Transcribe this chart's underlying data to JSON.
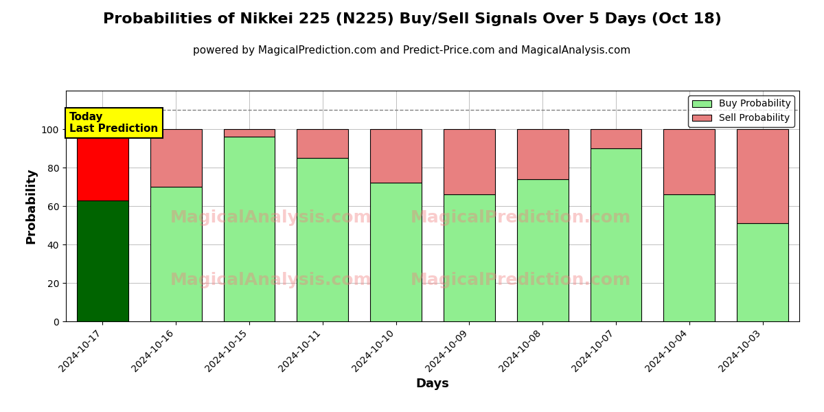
{
  "title": "Probabilities of Nikkei 225 (N225) Buy/Sell Signals Over 5 Days (Oct 18)",
  "subtitle": "powered by MagicalPrediction.com and Predict-Price.com and MagicalAnalysis.com",
  "xlabel": "Days",
  "ylabel": "Probability",
  "dates": [
    "2024-10-17",
    "2024-10-16",
    "2024-10-15",
    "2024-10-11",
    "2024-10-10",
    "2024-10-09",
    "2024-10-08",
    "2024-10-07",
    "2024-10-04",
    "2024-10-03"
  ],
  "buy_values": [
    63,
    70,
    96,
    85,
    72,
    66,
    74,
    90,
    66,
    51
  ],
  "sell_values": [
    37,
    30,
    4,
    15,
    28,
    34,
    26,
    10,
    34,
    49
  ],
  "buy_colors": [
    "#006400",
    "#90EE90",
    "#90EE90",
    "#90EE90",
    "#90EE90",
    "#90EE90",
    "#90EE90",
    "#90EE90",
    "#90EE90",
    "#90EE90"
  ],
  "sell_colors": [
    "#FF0000",
    "#E88080",
    "#E88080",
    "#E88080",
    "#E88080",
    "#E88080",
    "#E88080",
    "#E88080",
    "#E88080",
    "#E88080"
  ],
  "legend_buy_color": "#90EE90",
  "legend_sell_color": "#E88080",
  "ylim": [
    0,
    120
  ],
  "yticks": [
    0,
    20,
    40,
    60,
    80,
    100
  ],
  "dashed_line_y": 110,
  "background_color": "#ffffff",
  "today_box_color": "#FFFF00",
  "today_label": "Today\nLast Prediction",
  "title_fontsize": 16,
  "subtitle_fontsize": 11,
  "axis_label_fontsize": 13,
  "tick_fontsize": 10,
  "bar_width": 0.7
}
